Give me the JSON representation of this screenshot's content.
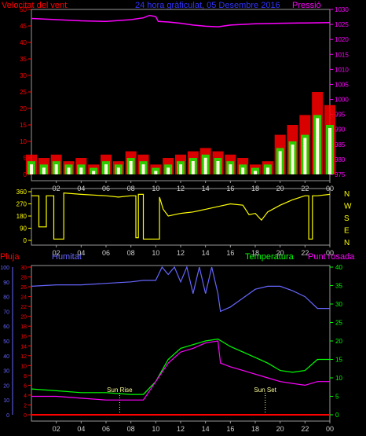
{
  "header": {
    "left": "Velocitat del vent",
    "center": "24 hora gràficulat, 05 Desembre 2016",
    "right": "Pressió"
  },
  "time_ticks": [
    "02",
    "04",
    "06",
    "08",
    "10",
    "12",
    "14",
    "16",
    "18",
    "20",
    "22",
    "00"
  ],
  "chart_data": [
    {
      "type": "line",
      "name_left_axis": "Velocitat del vent",
      "name_right_axis": "Pressió",
      "left_ticks": [
        0,
        5,
        10,
        15,
        20,
        25,
        30,
        35,
        40,
        45,
        50
      ],
      "right_ticks": [
        975,
        980,
        985,
        990,
        995,
        1000,
        1005,
        1010,
        1015,
        1020,
        1025,
        1030
      ],
      "ylim_left": [
        0,
        50
      ],
      "ylim_right": [
        975,
        1030
      ],
      "colors": {
        "gust": "#ff0000",
        "speed": "#00ff00",
        "avg": "#ffffe0",
        "pressure": "#ff00ff"
      },
      "pressure": {
        "x": [
          0,
          2,
          4,
          6,
          8,
          9,
          9.5,
          10,
          10.2,
          11,
          12,
          13,
          14,
          15,
          16,
          18,
          20,
          22,
          24
        ],
        "y": [
          1027,
          1026.6,
          1026.2,
          1026,
          1026.6,
          1027.2,
          1028,
          1027.6,
          1026,
          1025.8,
          1025.4,
          1024.8,
          1024.4,
          1024.2,
          1024.8,
          1025.2,
          1025.4,
          1025.5,
          1025.6
        ]
      },
      "wind_gust": {
        "x": [
          0,
          1,
          2,
          3,
          4,
          5,
          6,
          7,
          8,
          9,
          10,
          11,
          12,
          13,
          14,
          15,
          16,
          17,
          18,
          19,
          20,
          21,
          22,
          23,
          24
        ],
        "y": [
          6,
          5,
          6,
          4,
          5,
          3,
          6,
          4,
          7,
          6,
          3,
          5,
          6,
          7,
          8,
          7,
          6,
          5,
          3,
          4,
          12,
          15,
          18,
          25,
          21
        ]
      },
      "wind_speed": {
        "x": [
          0,
          1,
          2,
          3,
          4,
          5,
          6,
          7,
          8,
          9,
          10,
          11,
          12,
          13,
          14,
          15,
          16,
          17,
          18,
          19,
          20,
          21,
          22,
          23,
          24
        ],
        "y": [
          4,
          3,
          4,
          3,
          3,
          2,
          4,
          3,
          5,
          4,
          2,
          3,
          4,
          5,
          6,
          5,
          4,
          3,
          2,
          3,
          8,
          10,
          12,
          18,
          15
        ]
      }
    },
    {
      "type": "line",
      "name": "Wind direction",
      "left_ticks": [
        0,
        90,
        180,
        270,
        360
      ],
      "right_labels": [
        "N",
        "W",
        "S",
        "E",
        "N"
      ],
      "ylim": [
        0,
        360
      ],
      "color": "#ffff00",
      "x": [
        0,
        0.6,
        0.6,
        1.2,
        1.2,
        1.8,
        1.8,
        2.6,
        2.6,
        4,
        6,
        7,
        8,
        8.4,
        8.4,
        8.6,
        8.6,
        9,
        9,
        10.3,
        10.3,
        10.6,
        11,
        12,
        13,
        14,
        15,
        16,
        17,
        17.5,
        18,
        18.5,
        19,
        20,
        21,
        22,
        22.3,
        22.3,
        22.6,
        22.6,
        23,
        24
      ],
      "y": [
        330,
        330,
        100,
        100,
        330,
        330,
        10,
        10,
        350,
        340,
        330,
        320,
        330,
        330,
        20,
        20,
        340,
        340,
        10,
        10,
        320,
        230,
        180,
        200,
        210,
        230,
        250,
        270,
        260,
        190,
        200,
        150,
        210,
        260,
        300,
        330,
        330,
        10,
        10,
        330,
        330,
        340
      ]
    },
    {
      "type": "line",
      "left_ticks_pluja": [
        0,
        2,
        4,
        6,
        8,
        10,
        12,
        14,
        16,
        18,
        20,
        22,
        24,
        26,
        28,
        30
      ],
      "left_ticks_humitat": [
        0,
        10,
        20,
        30,
        40,
        50,
        60,
        70,
        80,
        90,
        100
      ],
      "right_ticks_temp": [
        0,
        5,
        10,
        15,
        20,
        25,
        30,
        35,
        40
      ],
      "labels": {
        "pluja": "Pluja",
        "humitat": "Humitat",
        "temperatura": "Temperatura",
        "punt_rosada": "Punt rosada",
        "sun_rise": "Sun Rise",
        "sun_set": "Sun Set"
      },
      "sun_rise_hour": 7.1,
      "sun_set_hour": 18.8,
      "colors": {
        "rain": "#ff0000",
        "humidity": "#6666ff",
        "temperature": "#00ff00",
        "dewpoint": "#ff00ff"
      },
      "humidity": {
        "x": [
          0,
          2,
          4,
          6,
          8,
          9,
          9.4,
          10,
          10.5,
          11,
          11.5,
          12,
          12.5,
          13,
          13.5,
          14,
          14.5,
          15,
          15.2,
          16,
          17,
          18,
          19,
          20,
          21,
          22,
          23,
          24
        ],
        "y": [
          87,
          88,
          88,
          89,
          90,
          91,
          91,
          91,
          100,
          95,
          100,
          90,
          100,
          82,
          100,
          82,
          100,
          82,
          70,
          73,
          79,
          85,
          87,
          87,
          84,
          80,
          72,
          72
        ]
      },
      "temperature": {
        "x": [
          0,
          2,
          4,
          6,
          8,
          9,
          10,
          11,
          12,
          13,
          14,
          15,
          16,
          17,
          18,
          19,
          20,
          21,
          22,
          23,
          24
        ],
        "y": [
          7,
          6.5,
          6,
          6,
          5.5,
          5.5,
          9,
          15,
          18,
          19,
          20,
          20.5,
          18.5,
          17,
          15.5,
          14,
          12,
          11.5,
          12,
          15,
          15
        ]
      },
      "dewpoint": {
        "x": [
          0,
          2,
          4,
          6,
          8,
          9,
          10,
          11,
          12,
          13,
          14,
          15,
          15.2,
          16,
          17,
          18,
          19,
          20,
          21,
          22,
          23,
          24
        ],
        "y": [
          5,
          5,
          4.5,
          4,
          4,
          4,
          9,
          14,
          17,
          18,
          19.5,
          20,
          14,
          13,
          12,
          11,
          10,
          9,
          8.5,
          8,
          9,
          9
        ]
      },
      "rain": {
        "x": [
          0,
          24
        ],
        "y": [
          0,
          0
        ]
      }
    }
  ]
}
